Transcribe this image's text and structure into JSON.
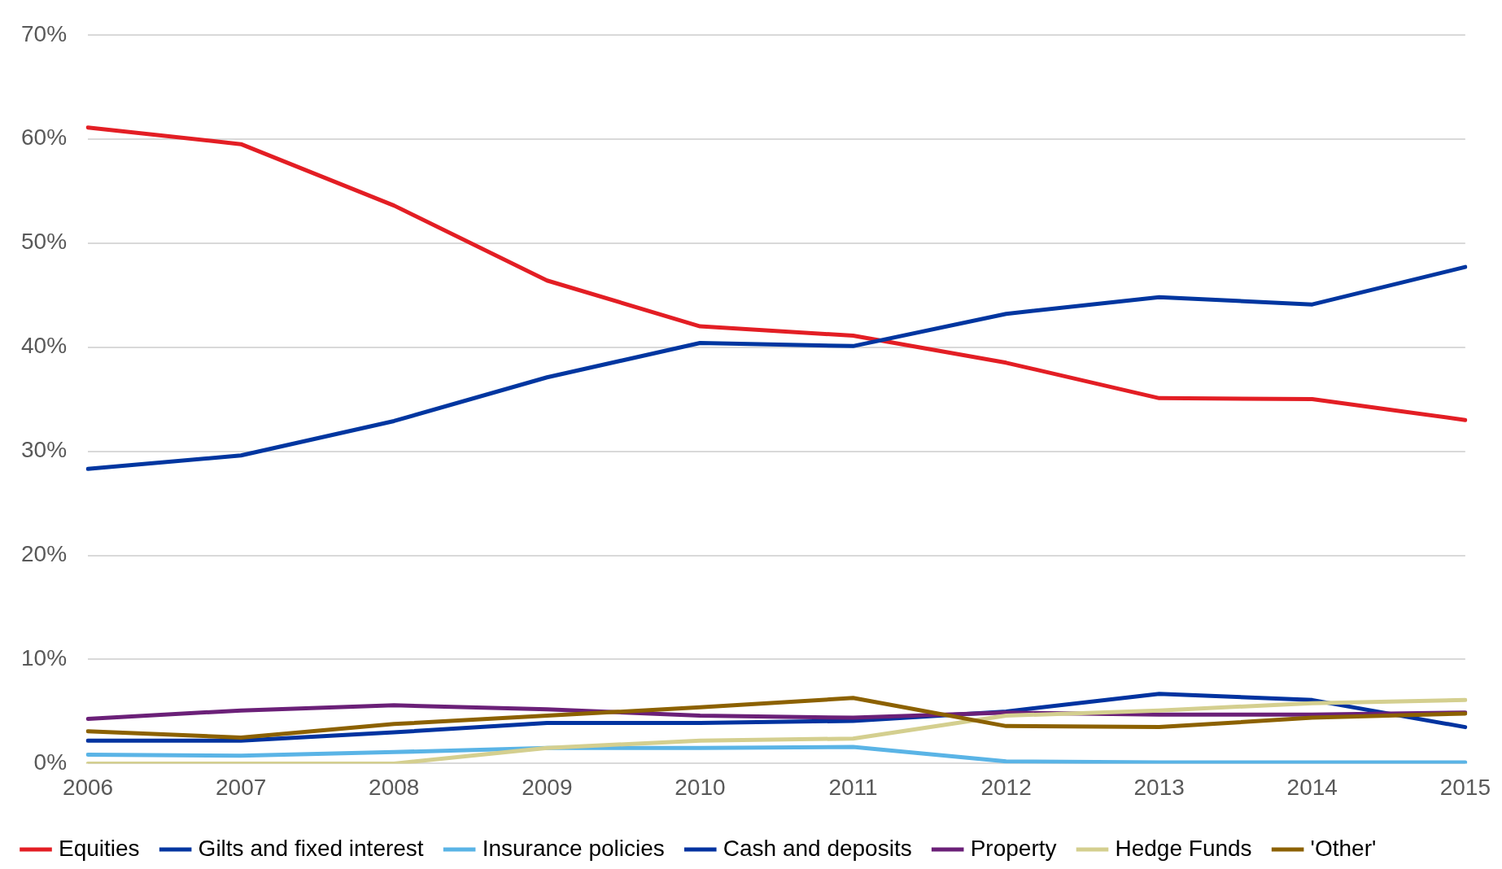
{
  "chart_data": {
    "type": "line",
    "categories": [
      "2006",
      "2007",
      "2008",
      "2009",
      "2010",
      "2011",
      "2012",
      "2013",
      "2014",
      "2015"
    ],
    "ylim": [
      0,
      70
    ],
    "yticks": [
      {
        "value": 0,
        "label": "0%"
      },
      {
        "value": 10,
        "label": "10%"
      },
      {
        "value": 20,
        "label": "20%"
      },
      {
        "value": 30,
        "label": "30%"
      },
      {
        "value": 40,
        "label": "40%"
      },
      {
        "value": 50,
        "label": "50%"
      },
      {
        "value": 60,
        "label": "60%"
      },
      {
        "value": 70,
        "label": "70%"
      }
    ],
    "grid": "y",
    "legend": "bottom",
    "marker": "none",
    "line_style": "solid",
    "series": [
      {
        "name": "Equities",
        "color": "#e31e24",
        "values": [
          61.1,
          59.5,
          53.6,
          46.4,
          42.0,
          41.1,
          38.5,
          35.1,
          35.0,
          33.0
        ]
      },
      {
        "name": "Gilts and fixed interest",
        "color": "#0036a0",
        "values": [
          28.3,
          29.6,
          32.9,
          37.1,
          40.4,
          40.1,
          43.2,
          44.8,
          44.1,
          47.7
        ]
      },
      {
        "name": "Insurance policies",
        "color": "#5ab4e6",
        "values": [
          0.85,
          0.75,
          1.1,
          1.5,
          1.5,
          1.6,
          0.2,
          0.1,
          0.1,
          0.1
        ]
      },
      {
        "name": "Cash and deposits",
        "color": "#0033a0",
        "values": [
          2.2,
          2.2,
          3.0,
          3.9,
          3.9,
          4.1,
          5.0,
          6.7,
          6.1,
          3.5
        ]
      },
      {
        "name": "Property",
        "color": "#6b2078",
        "values": [
          4.3,
          5.1,
          5.6,
          5.2,
          4.6,
          4.4,
          4.9,
          4.7,
          4.7,
          4.9
        ]
      },
      {
        "name": "Hedge Funds",
        "color": "#d4cf8f",
        "values": [
          0,
          0,
          0,
          1.5,
          2.2,
          2.4,
          4.6,
          5.1,
          5.8,
          6.1
        ]
      },
      {
        "name": "'Other'",
        "color": "#8c6100",
        "values": [
          3.1,
          2.5,
          3.8,
          4.6,
          5.4,
          6.3,
          3.6,
          3.5,
          4.4,
          4.8
        ]
      }
    ]
  }
}
